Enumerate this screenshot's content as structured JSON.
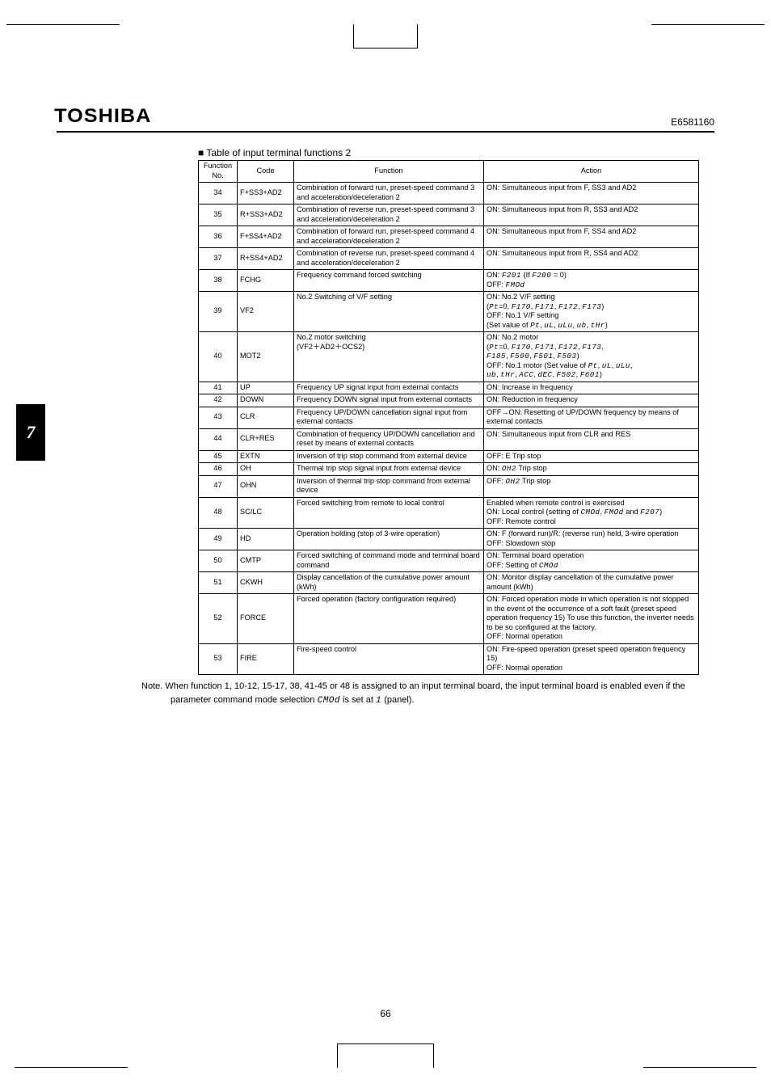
{
  "header": {
    "logo": "TOSHIBA",
    "docnum": "E6581160"
  },
  "sidetab": "7",
  "pagenum": "66",
  "tabletitle": "Table of input terminal functions 2",
  "columns": {
    "h1": "Function\nNo.",
    "h2": "Code",
    "h3": "Function",
    "h4": "Action"
  },
  "rows": [
    {
      "no": "34",
      "code": "F+SS3+AD2",
      "func": "Combination of forward run, preset-speed command 3 and acceleration/deceleration 2",
      "act": "ON: Simultaneous input from F, SS3 and AD2"
    },
    {
      "no": "35",
      "code": "R+SS3+AD2",
      "func": "Combination of reverse run, preset-speed command 3 and acceleration/deceleration 2",
      "act": "ON: Simultaneous input from R, SS3 and AD2"
    },
    {
      "no": "36",
      "code": "F+SS4+AD2",
      "func": "Combination of forward run, preset-speed command 4 and acceleration/deceleration 2",
      "act": "ON: Simultaneous input from F, SS4 and AD2"
    },
    {
      "no": "37",
      "code": "R+SS4+AD2",
      "func": "Combination of reverse run, preset-speed command 4 and acceleration/deceleration 2",
      "act": "ON: Simultaneous input from R, SS4 and AD2"
    },
    {
      "no": "38",
      "code": "FCHG",
      "func": "Frequency command forced switching",
      "act": "ON: F201 (If F200 = 0)\nOFF: FMOd"
    },
    {
      "no": "39",
      "code": "VF2",
      "func": "No.2 Switching of V/F setting",
      "act": "ON: No.2 V/F setting\n      (Pt=0, F170, F171, F172, F173)\nOFF: No.1 V/F setting\n      (Set value of Pt, uL, uLu, ub, tHr)"
    },
    {
      "no": "40",
      "code": "MOT2",
      "func": "No.2 motor switching\n(VF2＋AD2＋OCS2)",
      "act": "ON: No.2 motor\n      (Pt=0, F170, F171, F172, F173,\n      F185, F500, F501, F503)\nOFF: No.1 motor (Set value of Pt, uL, uLu,\n      ub, tHr, ACC, dEC, F502, F601)"
    },
    {
      "no": "41",
      "code": "UP",
      "func": "Frequency UP signal input from external contacts",
      "act": "ON: Increase in frequency"
    },
    {
      "no": "42",
      "code": "DOWN",
      "func": "Frequency DOWN signal input from external contacts",
      "act": "ON: Reduction in frequency"
    },
    {
      "no": "43",
      "code": "CLR",
      "func": "Frequency UP/DOWN cancellation signal input from external contacts",
      "act": "OFF→ON: Resetting of UP/DOWN frequency by means of external contacts"
    },
    {
      "no": "44",
      "code": "CLR+RES",
      "func": "Combination of frequency UP/DOWN cancellation and reset by means of external contacts",
      "act": "ON: Simultaneous input from CLR and RES"
    },
    {
      "no": "45",
      "code": "EXTN",
      "func": "Inversion of trip stop command from external device",
      "act": "OFF: E Trip stop"
    },
    {
      "no": "46",
      "code": "OH",
      "func": "Thermal trip stop signal input from external device",
      "act": "ON: OH2 Trip stop"
    },
    {
      "no": "47",
      "code": "OHN",
      "func": "Inversion of thermal trip stop command from external device",
      "act": "OFF: OH2 Trip stop"
    },
    {
      "no": "48",
      "code": "SC/LC",
      "func": "Forced switching from remote to local control",
      "act": "Enabled when remote control is exercised\nON: Local control (setting of CMOd, FMOd and F207)\nOFF: Remote control"
    },
    {
      "no": "49",
      "code": "HD",
      "func": "Operation holding (stop of 3-wire operation)",
      "act": "ON: F (forward run)/R: (reverse run) held, 3-wire operation\nOFF: Slowdown stop"
    },
    {
      "no": "50",
      "code": "CMTP",
      "func": "Forced switching of command mode and terminal board command",
      "act": "ON: Terminal board operation\nOFF: Setting of CMOd"
    },
    {
      "no": "51",
      "code": "CKWH",
      "func": "Display cancellation of the cumulative power amount (kWh)",
      "act": "ON: Monitor display cancellation of the cumulative power amount (kWh)"
    },
    {
      "no": "52",
      "code": "FORCE",
      "func": "Forced operation (factory configuration required)",
      "act": "ON: Forced operation mode in which operation is not stopped in the event of the occurrence of a soft fault (preset speed operation frequency 15) To use this function, the inverter needs to be so configured at the factory.\nOFF: Normal operation"
    },
    {
      "no": "53",
      "code": "FIRE",
      "func": "Fire-speed control",
      "act": "ON: Fire-speed operation (preset speed operation frequency 15)\nOFF: Normal operation"
    }
  ],
  "note": "Note.  When function 1, 10-12, 15-17, 38, 41-45 or 48 is assigned to an input terminal board, the input terminal board is enabled even if the parameter command mode selection CMOd is set at 1 (panel)."
}
